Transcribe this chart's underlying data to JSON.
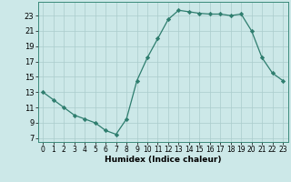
{
  "x": [
    0,
    1,
    2,
    3,
    4,
    5,
    6,
    7,
    8,
    9,
    10,
    11,
    12,
    13,
    14,
    15,
    16,
    17,
    18,
    19,
    20,
    21,
    22,
    23
  ],
  "y": [
    13,
    12,
    11,
    10,
    9.5,
    9,
    8,
    7.5,
    9.5,
    14.5,
    17.5,
    20,
    22.5,
    23.7,
    23.5,
    23.3,
    23.2,
    23.2,
    23.0,
    23.2,
    21,
    17.5,
    15.5,
    14.5
  ],
  "xlabel": "Humidex (Indice chaleur)",
  "xlim": [
    -0.5,
    23.5
  ],
  "ylim": [
    6.5,
    24.8
  ],
  "yticks": [
    7,
    9,
    11,
    13,
    15,
    17,
    19,
    21,
    23
  ],
  "xticks": [
    0,
    1,
    2,
    3,
    4,
    5,
    6,
    7,
    8,
    9,
    10,
    11,
    12,
    13,
    14,
    15,
    16,
    17,
    18,
    19,
    20,
    21,
    22,
    23
  ],
  "line_color": "#2e7d6e",
  "marker": "D",
  "marker_size": 2.2,
  "bg_color": "#cce8e8",
  "grid_color": "#aacccc",
  "xlabel_fontsize": 6.5,
  "tick_fontsize": 5.5,
  "ytick_fontsize": 6.0
}
